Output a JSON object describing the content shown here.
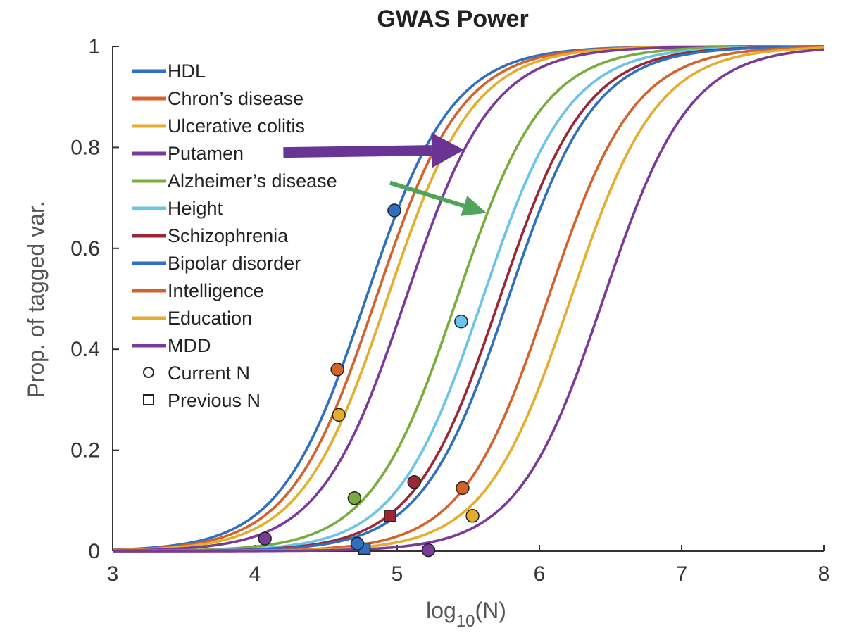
{
  "chart_data": {
    "type": "line",
    "title": "GWAS Power",
    "xlabel_prefix": "log",
    "xlabel_sub": "10",
    "xlabel_suffix": "(N)",
    "ylabel": "Prop. of tagged var.",
    "xlim": [
      3,
      8
    ],
    "ylim": [
      0,
      1
    ],
    "xticks": [
      3,
      4,
      5,
      6,
      7,
      8
    ],
    "xtick_labels": [
      "3",
      "4",
      "5",
      "6",
      "7",
      "8"
    ],
    "yticks": [
      0,
      0.2,
      0.4,
      0.6,
      0.8,
      1
    ],
    "ytick_labels": [
      "0",
      "0.2",
      "0.4",
      "0.6",
      "0.8",
      "1"
    ],
    "grid": false,
    "legend_position": "top-left",
    "series": [
      {
        "name": "HDL",
        "color": "#2e6fbf",
        "midpoint": 4.78,
        "slope": 3.3,
        "current_n": 4.98,
        "current_y": 0.675
      },
      {
        "name": "Chron’s disease",
        "color": "#d5622a",
        "midpoint": 4.85,
        "slope": 3.3,
        "current_n": 4.58,
        "current_y": 0.36
      },
      {
        "name": "Ulcerative colitis",
        "color": "#e4ad2b",
        "midpoint": 4.93,
        "slope": 3.3,
        "current_n": 4.59,
        "current_y": 0.27
      },
      {
        "name": "Putamen",
        "color": "#7a3a9a",
        "midpoint": 5.06,
        "slope": 3.3,
        "current_n": 4.07,
        "current_y": 0.025
      },
      {
        "name": "Alzheimer’s disease",
        "color": "#78ad3c",
        "midpoint": 5.42,
        "slope": 3.3,
        "current_n": 4.7,
        "current_y": 0.105
      },
      {
        "name": "Height",
        "color": "#6cc3ea",
        "midpoint": 5.6,
        "slope": 3.3,
        "current_n": 5.45,
        "current_y": 0.455
      },
      {
        "name": "Schizophrenia",
        "color": "#9b2736",
        "midpoint": 5.72,
        "slope": 3.3,
        "current_n": 5.12,
        "current_y": 0.137,
        "previous_n": 4.95,
        "previous_y": 0.07
      },
      {
        "name": "Bipolar disorder",
        "color": "#2e6fbf",
        "midpoint": 5.78,
        "slope": 3.3,
        "current_n": 4.72,
        "current_y": 0.015,
        "previous_n": 4.77,
        "previous_y": 0.005
      },
      {
        "name": "Intelligence",
        "color": "#d5622a",
        "midpoint": 6.06,
        "slope": 3.3,
        "current_n": 5.46,
        "current_y": 0.125
      },
      {
        "name": "Education",
        "color": "#e4ad2b",
        "midpoint": 6.22,
        "slope": 3.3,
        "current_n": 5.53,
        "current_y": 0.07
      },
      {
        "name": "MDD",
        "color": "#7a3a9a",
        "midpoint": 6.45,
        "slope": 3.3,
        "current_n": 5.22,
        "current_y": 0.002
      }
    ],
    "marker_legend": [
      {
        "shape": "circle",
        "label": "Current N"
      },
      {
        "shape": "square",
        "label": "Previous N"
      }
    ],
    "annotations": [
      {
        "type": "arrow",
        "color": "#6a3494",
        "from": [
          4.2,
          0.79
        ],
        "to": [
          5.47,
          0.795
        ]
      },
      {
        "type": "arrow",
        "color": "#4fa35a",
        "from": [
          4.95,
          0.73
        ],
        "to": [
          5.63,
          0.67
        ]
      }
    ]
  }
}
